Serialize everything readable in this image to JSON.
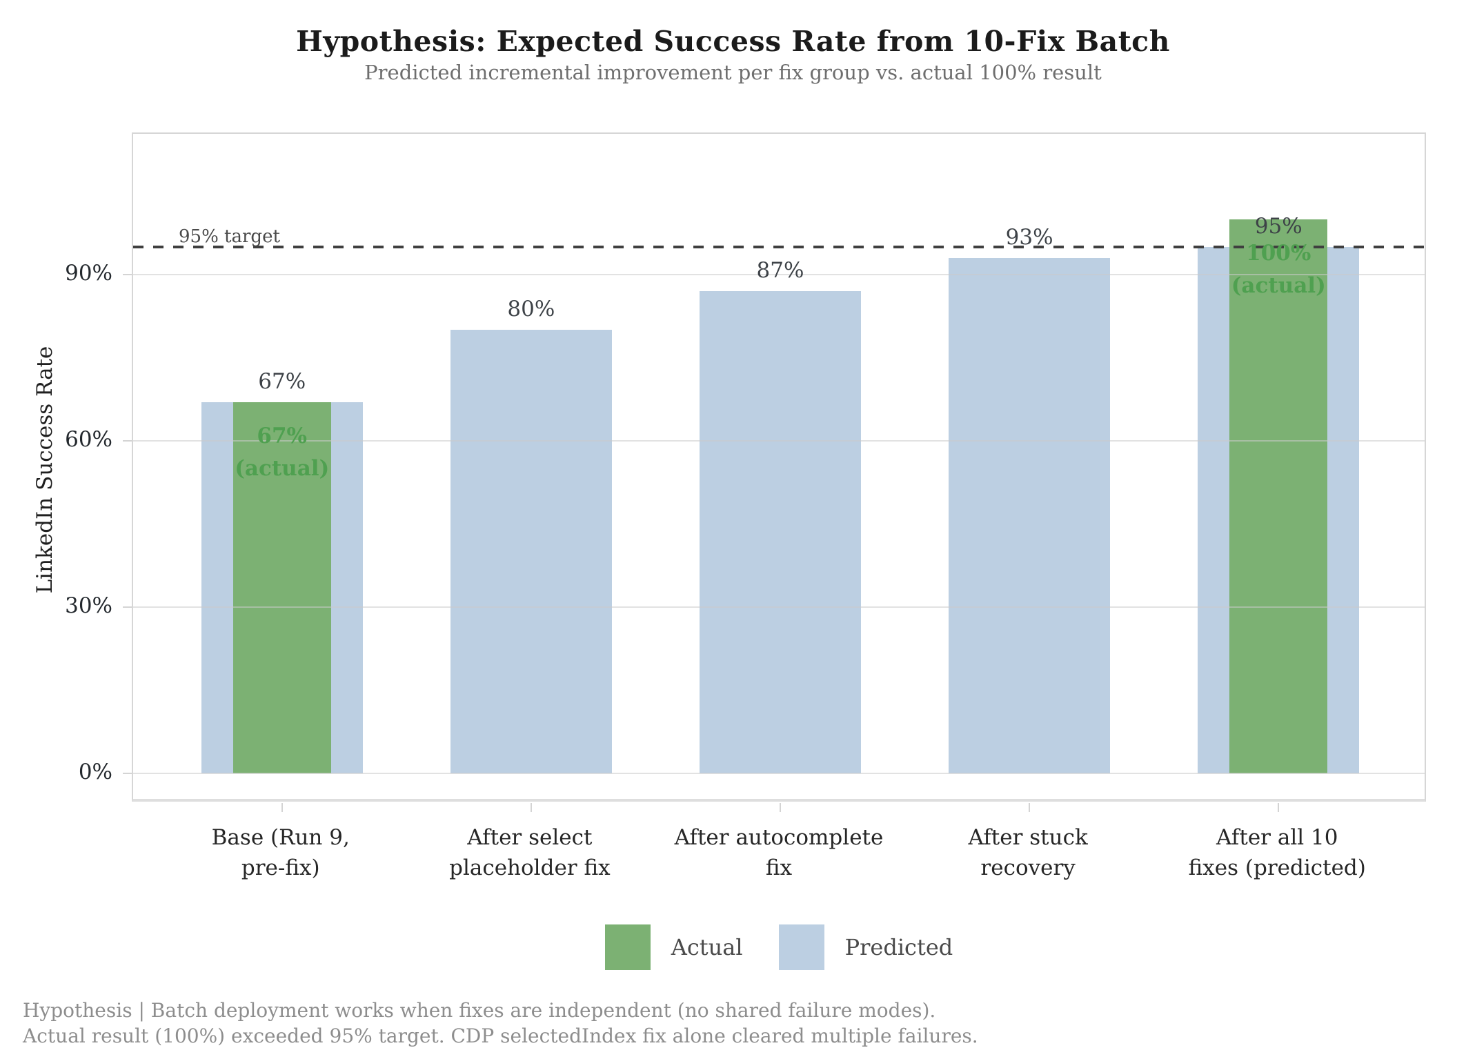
{
  "chart_data": {
    "type": "bar",
    "title": "Hypothesis: Expected Success Rate from 10-Fix Batch",
    "subtitle": "Predicted incremental improvement per fix group vs. actual 100% result",
    "ylabel": "LinkedIn Success Rate",
    "categories": [
      [
        "Base (Run 9,",
        "pre-fix)"
      ],
      [
        "After select",
        "placeholder fix"
      ],
      [
        "After autocomplete",
        "fix"
      ],
      [
        "After stuck",
        "recovery"
      ],
      [
        "After all 10",
        "fixes (predicted)"
      ]
    ],
    "series": [
      {
        "name": "Predicted",
        "color": "#bccfe2",
        "values": [
          67,
          80,
          87,
          93,
          95
        ]
      },
      {
        "name": "Actual",
        "color": "#7cb173",
        "values": [
          67,
          null,
          null,
          null,
          100
        ]
      }
    ],
    "value_labels": [
      "67%",
      "80%",
      "87%",
      "93%",
      "95%"
    ],
    "inside_labels": [
      {
        "index": 0,
        "lines": [
          "67%",
          "(actual)"
        ]
      },
      {
        "index": 4,
        "lines": [
          "100%",
          "(actual)"
        ]
      }
    ],
    "target": {
      "value": 95,
      "label": "95% target"
    },
    "yticks": [
      0,
      30,
      60,
      90
    ],
    "ytick_labels": [
      "0%",
      "30%",
      "60%",
      "90%"
    ],
    "ylim": [
      -5.4,
      115.4
    ],
    "grid": true,
    "legend_position": "bottom",
    "legend": [
      {
        "label": "Actual",
        "series": "Actual"
      },
      {
        "label": "Predicted",
        "series": "Predicted"
      }
    ]
  },
  "footer": {
    "line1": "Hypothesis | Batch deployment works when fixes are independent (no shared failure modes).",
    "line2": "Actual result (100%) exceeded 95% target. CDP selectedIndex fix alone cleared multiple failures."
  },
  "colors": {
    "actual": "#7cb173",
    "predicted": "#bccfe2",
    "target_line": "#3f3f3f",
    "inside_label_text": "#4fa050"
  }
}
